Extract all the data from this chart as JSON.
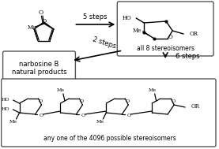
{
  "bg_color": "#f5f5f5",
  "border_color": "#333333",
  "text_color": "#111111",
  "arrow_color": "#333333",
  "title_5steps": "5 steps",
  "title_2steps": "2 steps",
  "title_6steps": "6 steps",
  "label_top_right": "all 8 stereoisomers",
  "label_bottom": "any one of the 4096 possible stereoisomers",
  "label_narbosine": "narbosine B\nnatural products",
  "figsize": [
    2.77,
    1.89
  ],
  "dpi": 100
}
